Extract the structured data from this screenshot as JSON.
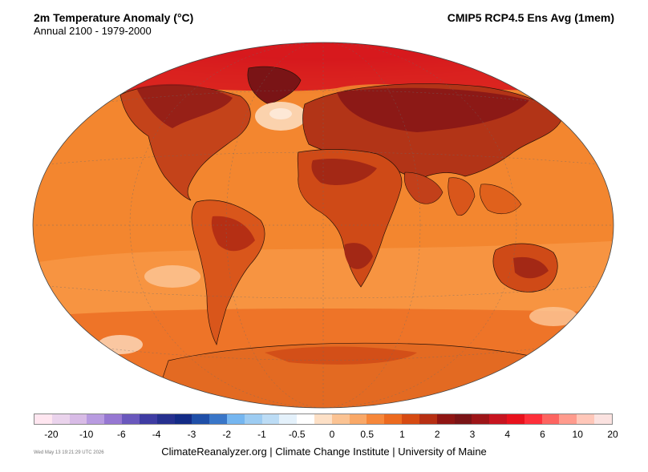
{
  "title": "2m Temperature Anomaly (°C)",
  "subtitle": "Annual 2100 - 1979-2000",
  "source": "CMIP5 RCP4.5 Ens Avg (1mem)",
  "legend": {
    "colors": [
      "#ffe6f0",
      "#ead3ec",
      "#d8bbe6",
      "#b89be0",
      "#9677d2",
      "#6a58bd",
      "#3f3ca3",
      "#26308f",
      "#132b86",
      "#1f4fa8",
      "#3976c8",
      "#75b6f0",
      "#9dccf2",
      "#bcdcf5",
      "#e4f1fb",
      "#ffffff",
      "#fde0c6",
      "#fbc393",
      "#f9a867",
      "#f6873a",
      "#ec6a1f",
      "#d64a12",
      "#b72f13",
      "#8f1513",
      "#7a1416",
      "#9d1518",
      "#c7141f",
      "#e8111c",
      "#fe2f3a",
      "#fd6460",
      "#ff9b8d",
      "#ffc7b9",
      "#fbe2e0"
    ],
    "tick_labels": [
      "-20",
      "-10",
      "-6",
      "-4",
      "-3",
      "-2",
      "-1",
      "-0.5",
      "0",
      "0.5",
      "1",
      "2",
      "3",
      "4",
      "6",
      "10",
      "20"
    ]
  },
  "map": {
    "projection": "Winkel Tripel",
    "field": "2m temperature anomaly",
    "ocean_base_color": "#f4872f",
    "warmest_region_color": "#c8131c",
    "coolest_region_color": "#fdebe0"
  },
  "timestamp": "Wed May 13 19:21:29 UTC 2026",
  "footer": "ClimateReanalyzer.org | Climate Change Institute | University of Maine"
}
